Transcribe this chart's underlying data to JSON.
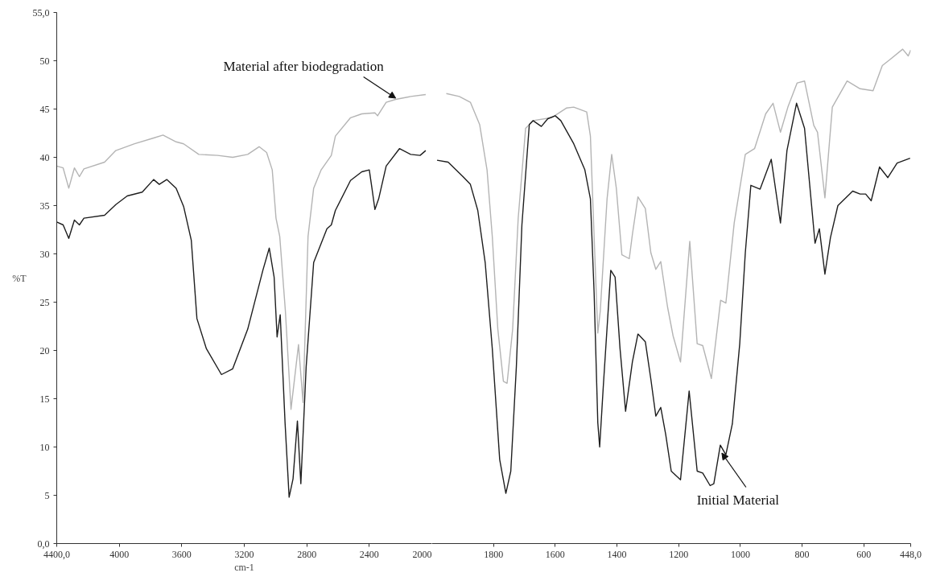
{
  "chart_data": [
    {
      "type": "line",
      "xlabel": "cm-1",
      "ylabel": "%T",
      "xlim": [
        4400,
        2000
      ],
      "ylim": [
        0,
        55
      ],
      "xticks": [
        {
          "value": 4400,
          "label": "4400,0"
        },
        4000,
        3600,
        3200,
        2800,
        2400,
        2000
      ],
      "yticks": [
        {
          "value": 0,
          "label": "0,0"
        },
        5,
        10,
        15,
        20,
        25,
        30,
        35,
        40,
        45,
        50,
        {
          "value": 55,
          "label": "55,0"
        }
      ],
      "annotations": [
        {
          "text": "Material after biodegradation",
          "x": 2231,
          "y": 46.0
        }
      ],
      "series": [
        {
          "color": "#b4b4b4",
          "x": [
            4400,
            4359,
            4323,
            4287,
            4255,
            4226,
            4094,
            4022,
            3902,
            3780,
            3720,
            3636,
            3588,
            3491,
            3370,
            3274,
            3178,
            3105,
            3057,
            3021,
            2997,
            2973,
            2937,
            2901,
            2853,
            2824,
            2792,
            2756,
            2708,
            2643,
            2617,
            2520,
            2448,
            2364,
            2347,
            2292,
            2231,
            2135,
            2039
          ],
          "values": [
            39.1,
            38.9,
            36.8,
            38.9,
            38.0,
            38.8,
            39.5,
            40.7,
            41.4,
            42.0,
            42.3,
            41.6,
            41.4,
            40.3,
            40.2,
            40.0,
            40.3,
            41.1,
            40.5,
            38.7,
            33.7,
            31.8,
            24.1,
            13.9,
            20.6,
            14.6,
            31.8,
            36.8,
            38.7,
            40.2,
            42.2,
            44.1,
            44.5,
            44.6,
            44.3,
            45.7,
            46.0,
            46.3,
            46.5
          ]
        },
        {
          "color": "#1e1e1e",
          "x": [
            4400,
            4359,
            4323,
            4287,
            4255,
            4226,
            4094,
            4022,
            3949,
            3853,
            3780,
            3744,
            3696,
            3636,
            3588,
            3539,
            3503,
            3443,
            3346,
            3274,
            3178,
            3081,
            3040,
            3009,
            2990,
            2970,
            2939,
            2913,
            2888,
            2860,
            2838,
            2804,
            2756,
            2671,
            2643,
            2617,
            2520,
            2448,
            2400,
            2383,
            2364,
            2340,
            2292,
            2207,
            2135,
            2075,
            2039
          ],
          "values": [
            33.3,
            33.0,
            31.6,
            33.5,
            33.0,
            33.7,
            34.0,
            35.1,
            36.0,
            36.4,
            37.7,
            37.2,
            37.7,
            36.8,
            34.9,
            31.4,
            23.3,
            20.2,
            17.5,
            18.1,
            22.2,
            28.3,
            30.6,
            27.6,
            21.4,
            23.7,
            12.5,
            4.8,
            6.7,
            12.7,
            6.2,
            18.3,
            29.1,
            32.6,
            33.0,
            34.5,
            37.6,
            38.5,
            38.7,
            36.8,
            34.6,
            35.7,
            39.1,
            40.9,
            40.3,
            40.2,
            40.7
          ]
        }
      ]
    },
    {
      "type": "line",
      "tick_labels": "x",
      "xlim": [
        2000,
        448
      ],
      "ylim": [
        0,
        55
      ],
      "xticks": [
        1800,
        1600,
        1400,
        1200,
        1000,
        800,
        600,
        {
          "value": 448,
          "label": "448,0"
        }
      ],
      "yticks": [
        0,
        5,
        10,
        15,
        20,
        25,
        30,
        35,
        40,
        45,
        50,
        55
      ],
      "annotations": [
        {
          "text": "Initial Material",
          "x": 1060,
          "y": 9.5
        }
      ],
      "series": [
        {
          "color": "#b4b4b4",
          "x": [
            1953,
            1911,
            1875,
            1845,
            1821,
            1804,
            1786,
            1768,
            1756,
            1738,
            1720,
            1696,
            1672,
            1612,
            1564,
            1540,
            1498,
            1486,
            1474,
            1462,
            1454,
            1432,
            1417,
            1402,
            1384,
            1360,
            1350,
            1332,
            1308,
            1290,
            1274,
            1258,
            1236,
            1218,
            1194,
            1164,
            1140,
            1122,
            1094,
            1064,
            1047,
            1020,
            984,
            954,
            918,
            894,
            870,
            846,
            816,
            792,
            762,
            750,
            726,
            702,
            654,
            612,
            570,
            540,
            516,
            474,
            456,
            448
          ],
          "values": [
            46.6,
            46.3,
            45.7,
            43.4,
            38.7,
            31.8,
            22.2,
            16.8,
            16.6,
            22.2,
            33.7,
            43.0,
            43.8,
            44.1,
            45.1,
            45.2,
            44.7,
            42.2,
            31.8,
            21.8,
            24.1,
            35.7,
            40.3,
            36.8,
            29.9,
            29.5,
            32.0,
            35.9,
            34.7,
            30.1,
            28.4,
            29.2,
            24.5,
            21.5,
            18.8,
            31.3,
            20.7,
            20.5,
            17.1,
            25.2,
            24.9,
            33.2,
            40.3,
            40.9,
            44.5,
            45.6,
            42.6,
            45.2,
            47.7,
            47.9,
            43.3,
            42.6,
            35.8,
            45.2,
            47.9,
            47.1,
            46.9,
            49.5,
            50.1,
            51.2,
            50.5,
            51.1
          ]
        },
        {
          "color": "#1e1e1e",
          "x": [
            1983,
            1947,
            1899,
            1875,
            1851,
            1827,
            1804,
            1780,
            1760,
            1744,
            1726,
            1708,
            1684,
            1672,
            1645,
            1624,
            1600,
            1582,
            1540,
            1504,
            1486,
            1474,
            1462,
            1456,
            1444,
            1420,
            1406,
            1390,
            1372,
            1350,
            1332,
            1308,
            1290,
            1274,
            1258,
            1242,
            1224,
            1194,
            1166,
            1140,
            1122,
            1098,
            1086,
            1065,
            1047,
            1026,
            1002,
            984,
            966,
            936,
            900,
            870,
            849,
            818,
            792,
            758,
            744,
            726,
            708,
            684,
            636,
            612,
            594,
            576,
            549,
            522,
            492,
            450
          ],
          "values": [
            39.7,
            39.5,
            38.0,
            37.2,
            34.5,
            29.1,
            20.2,
            8.7,
            5.2,
            7.5,
            18.3,
            33.0,
            43.4,
            43.8,
            43.2,
            44.0,
            44.3,
            43.8,
            41.4,
            38.7,
            35.7,
            26.0,
            12.5,
            10.0,
            16.4,
            28.3,
            27.6,
            20.2,
            13.7,
            18.8,
            21.7,
            20.9,
            17.0,
            13.2,
            14.1,
            11.3,
            7.5,
            6.6,
            15.8,
            7.5,
            7.3,
            6.0,
            6.2,
            10.2,
            9.2,
            12.4,
            20.7,
            30.1,
            37.1,
            36.7,
            39.8,
            33.2,
            40.7,
            45.6,
            43.0,
            31.1,
            32.6,
            27.9,
            31.7,
            35.0,
            36.5,
            36.2,
            36.2,
            35.5,
            39.0,
            37.9,
            39.4,
            39.9
          ]
        }
      ]
    }
  ]
}
